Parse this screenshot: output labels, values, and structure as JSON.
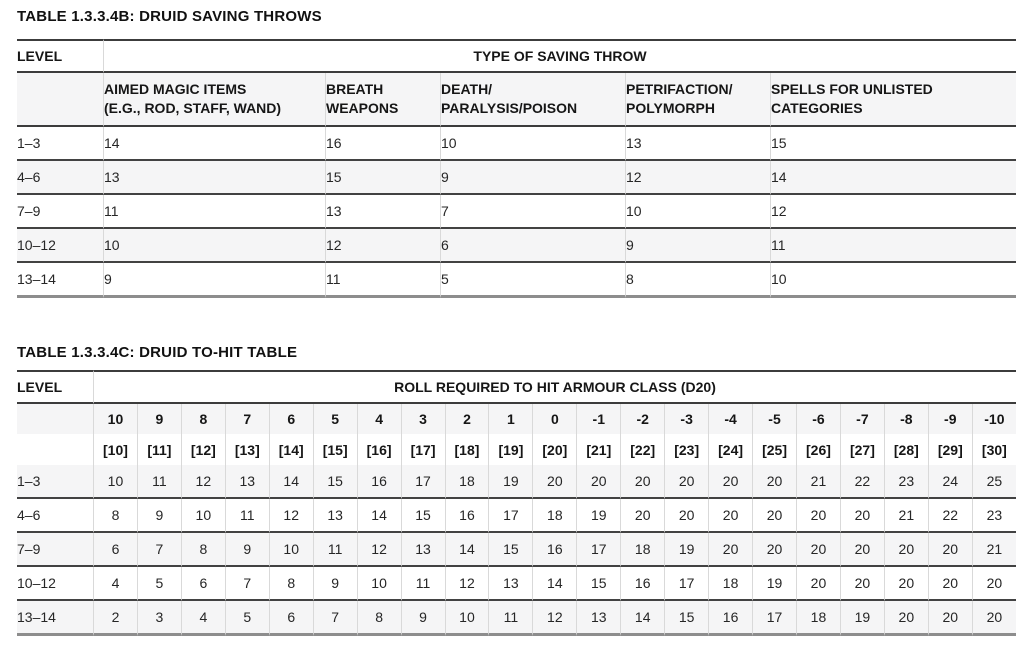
{
  "theme": {
    "background": "#ffffff",
    "text_color": "#1d1d1d",
    "stripe_color": "#f5f5f6",
    "border_dark": "#3c3c3c",
    "border_light": "#d9d9d9",
    "border_bottom_gray": "#8d8d8d"
  },
  "table1": {
    "title": "TABLE 1.3.3.4B: DRUID SAVING THROWS",
    "level_header": "LEVEL",
    "group_header": "TYPE OF SAVING THROW",
    "columns": [
      {
        "line1": "AIMED MAGIC ITEMS",
        "line2": "(E.G., ROD, STAFF, WAND)"
      },
      {
        "line1": "BREATH",
        "line2": "WEAPONS"
      },
      {
        "line1": "DEATH/",
        "line2": "PARALYSIS/POISON"
      },
      {
        "line1": "PETRIFACTION/",
        "line2": "POLYMORPH"
      },
      {
        "line1": "SPELLS FOR UNLISTED",
        "line2": "CATEGORIES"
      }
    ],
    "rows": [
      {
        "level": "1–3",
        "values": [
          14,
          16,
          10,
          13,
          15
        ]
      },
      {
        "level": "4–6",
        "values": [
          13,
          15,
          9,
          12,
          14
        ]
      },
      {
        "level": "7–9",
        "values": [
          11,
          13,
          7,
          10,
          12
        ]
      },
      {
        "level": "10–12",
        "values": [
          10,
          12,
          6,
          9,
          11
        ]
      },
      {
        "level": "13–14",
        "values": [
          9,
          11,
          5,
          8,
          10
        ]
      }
    ]
  },
  "table2": {
    "title": "TABLE 1.3.3.4C: DRUID TO-HIT TABLE",
    "level_header": "LEVEL",
    "group_header": "ROLL REQUIRED TO HIT ARMOUR CLASS (D20)",
    "armour_class": [
      "10",
      "9",
      "8",
      "7",
      "6",
      "5",
      "4",
      "3",
      "2",
      "1",
      "0",
      "-1",
      "-2",
      "-3",
      "-4",
      "-5",
      "-6",
      "-7",
      "-8",
      "-9",
      "-10"
    ],
    "armour_class_bracketed": [
      "[10]",
      "[11]",
      "[12]",
      "[13]",
      "[14]",
      "[15]",
      "[16]",
      "[17]",
      "[18]",
      "[19]",
      "[20]",
      "[21]",
      "[22]",
      "[23]",
      "[24]",
      "[25]",
      "[26]",
      "[27]",
      "[28]",
      "[29]",
      "[30]"
    ],
    "rows": [
      {
        "level": "1–3",
        "values": [
          10,
          11,
          12,
          13,
          14,
          15,
          16,
          17,
          18,
          19,
          20,
          20,
          20,
          20,
          20,
          20,
          21,
          22,
          23,
          24,
          25
        ]
      },
      {
        "level": "4–6",
        "values": [
          8,
          9,
          10,
          11,
          12,
          13,
          14,
          15,
          16,
          17,
          18,
          19,
          20,
          20,
          20,
          20,
          20,
          20,
          21,
          22,
          23
        ]
      },
      {
        "level": "7–9",
        "values": [
          6,
          7,
          8,
          9,
          10,
          11,
          12,
          13,
          14,
          15,
          16,
          17,
          18,
          19,
          20,
          20,
          20,
          20,
          20,
          20,
          21
        ]
      },
      {
        "level": "10–12",
        "values": [
          4,
          5,
          6,
          7,
          8,
          9,
          10,
          11,
          12,
          13,
          14,
          15,
          16,
          17,
          18,
          19,
          20,
          20,
          20,
          20,
          20
        ]
      },
      {
        "level": "13–14",
        "values": [
          2,
          3,
          4,
          5,
          6,
          7,
          8,
          9,
          10,
          11,
          12,
          13,
          14,
          15,
          16,
          17,
          18,
          19,
          20,
          20,
          20
        ]
      }
    ]
  }
}
